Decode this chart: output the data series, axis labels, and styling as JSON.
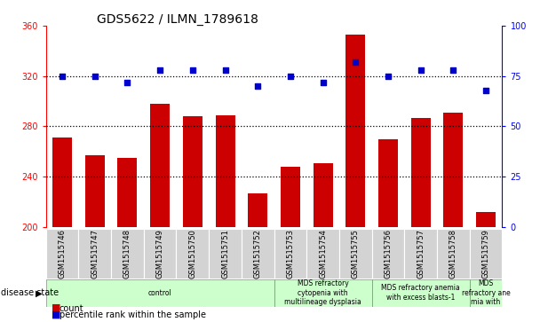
{
  "title": "GDS5622 / ILMN_1789618",
  "samples": [
    "GSM1515746",
    "GSM1515747",
    "GSM1515748",
    "GSM1515749",
    "GSM1515750",
    "GSM1515751",
    "GSM1515752",
    "GSM1515753",
    "GSM1515754",
    "GSM1515755",
    "GSM1515756",
    "GSM1515757",
    "GSM1515758",
    "GSM1515759"
  ],
  "counts": [
    271,
    257,
    255,
    298,
    288,
    289,
    227,
    248,
    251,
    353,
    270,
    287,
    291,
    212
  ],
  "percentile_ranks": [
    75,
    75,
    72,
    78,
    78,
    78,
    70,
    75,
    72,
    82,
    75,
    78,
    78,
    68
  ],
  "left_ylim": [
    200,
    360
  ],
  "left_yticks": [
    200,
    240,
    280,
    320,
    360
  ],
  "right_ylim": [
    0,
    100
  ],
  "right_yticks": [
    0,
    25,
    50,
    75,
    100
  ],
  "bar_color": "#cc0000",
  "dot_color": "#0000cc",
  "bar_width": 0.6,
  "disease_groups": [
    {
      "label": "control",
      "start": 0,
      "end": 7,
      "color": "#ccffcc"
    },
    {
      "label": "MDS refractory\ncytopenia with\nmultilineage dysplasia",
      "start": 7,
      "end": 10,
      "color": "#ccffcc"
    },
    {
      "label": "MDS refractory anemia\nwith excess blasts-1",
      "start": 10,
      "end": 13,
      "color": "#ccffcc"
    },
    {
      "label": "MDS\nrefractory ane\nmia with",
      "start": 13,
      "end": 14,
      "color": "#ccffcc"
    }
  ],
  "disease_state_label": "disease state",
  "legend_count_label": "count",
  "legend_percentile_label": "percentile rank within the sample",
  "tick_bg_color": "#d3d3d3",
  "bg_color": "white",
  "title_fontsize": 10,
  "axis_fontsize": 7,
  "label_fontsize": 7
}
